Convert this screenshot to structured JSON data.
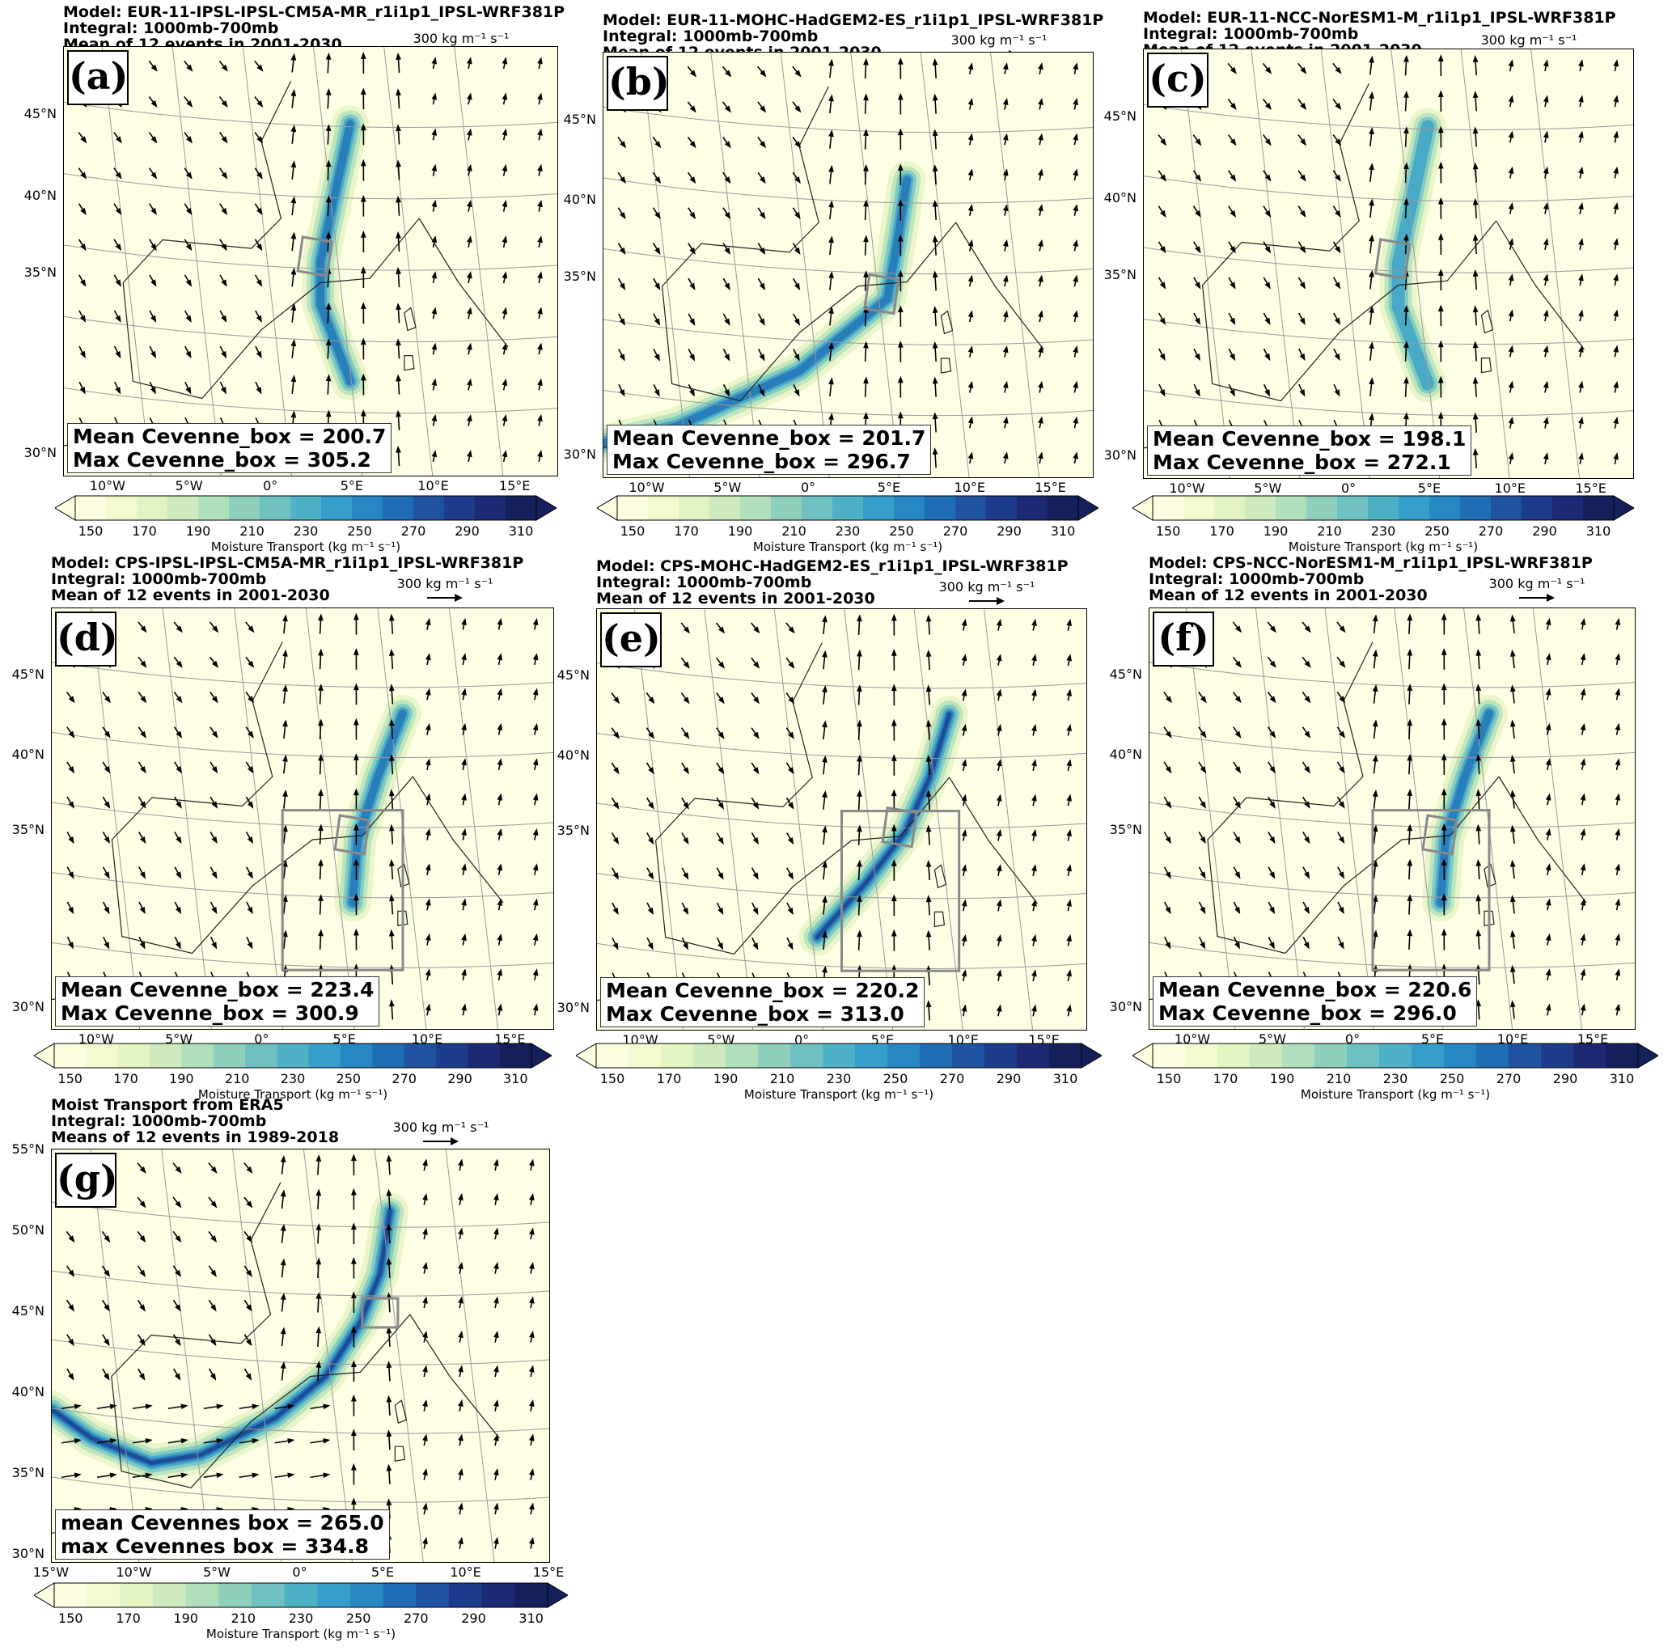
{
  "colors": {
    "scale": [
      "#fdfee0",
      "#f3fad0",
      "#e3f3c2",
      "#cdebbd",
      "#b0dfbb",
      "#8fd0bc",
      "#6ec1c0",
      "#4eb1c6",
      "#359fca",
      "#2687c2",
      "#1f6db4",
      "#1f53a2",
      "#1e3c8c",
      "#1b2a73",
      "#15205a"
    ]
  },
  "colorbar": {
    "ticks": [
      "150",
      "170",
      "190",
      "210",
      "230",
      "250",
      "270",
      "290",
      "310"
    ],
    "label": "Moisture Transport (kg m⁻¹ s⁻¹)"
  },
  "scale_label": "300 kg m⁻¹ s⁻¹",
  "panels": [
    {
      "letter": "(a)",
      "model": "Model: EUR-11-IPSL-IPSL-CM5A-MR_r1i1p1_IPSL-WRF381P",
      "integral": "Integral: 1000mb-700mb",
      "period": "Mean of 12 events in 2001-2030",
      "mean_text": "Mean Cevenne_box = 200.7",
      "max_text": "Max Cevenne_box = 305.2",
      "lat_labels": [
        "45°N",
        "40°N",
        "35°N",
        "30°N"
      ],
      "lon_labels": [
        "10°W",
        "5°W",
        "0°",
        "5°E",
        "10°E",
        "15°E"
      ],
      "mean": 200.7,
      "max": 305.2
    },
    {
      "letter": "(b)",
      "model": "Model: EUR-11-MOHC-HadGEM2-ES_r1i1p1_IPSL-WRF381P",
      "integral": "Integral: 1000mb-700mb",
      "period": "Mean of 12 events in 2001-2030",
      "mean_text": "Mean Cevenne_box = 201.7",
      "max_text": "Max Cevenne_box = 296.7",
      "lat_labels": [
        "45°N",
        "40°N",
        "35°N",
        "30°N"
      ],
      "lon_labels": [
        "10°W",
        "5°W",
        "0°",
        "5°E",
        "10°E",
        "15°E"
      ],
      "mean": 201.7,
      "max": 296.7
    },
    {
      "letter": "(c)",
      "model": "Model: EUR-11-NCC-NorESM1-M_r1i1p1_IPSL-WRF381P",
      "integral": "Integral: 1000mb-700mb",
      "period": "Mean of 12 events in 2001-2030",
      "mean_text": "Mean Cevenne_box = 198.1",
      "max_text": "Max Cevenne_box = 272.1",
      "lat_labels": [
        "45°N",
        "40°N",
        "35°N",
        "30°N"
      ],
      "lon_labels": [
        "10°W",
        "5°W",
        "0°",
        "5°E",
        "10°E",
        "15°E"
      ],
      "mean": 198.1,
      "max": 272.1
    },
    {
      "letter": "(d)",
      "model": "Model: CPS-IPSL-IPSL-CM5A-MR_r1i1p1_IPSL-WRF381P",
      "integral": "Integral: 1000mb-700mb",
      "period": "Mean of 12 events in 2001-2030",
      "mean_text": "Mean Cevenne_box = 223.4",
      "max_text": "Max Cevenne_box = 300.9",
      "lat_labels": [
        "45°N",
        "40°N",
        "35°N",
        "30°N"
      ],
      "lon_labels": [
        "10°W",
        "5°W",
        "0°",
        "5°E",
        "10°E",
        "15°E"
      ],
      "mean": 223.4,
      "max": 300.9
    },
    {
      "letter": "(e)",
      "model": "Model: CPS-MOHC-HadGEM2-ES_r1i1p1_IPSL-WRF381P",
      "integral": "Integral: 1000mb-700mb",
      "period": "Mean of 12 events in 2001-2030",
      "mean_text": "Mean Cevenne_box = 220.2",
      "max_text": "Max Cevenne_box = 313.0",
      "lat_labels": [
        "45°N",
        "40°N",
        "35°N",
        "30°N"
      ],
      "lon_labels": [
        "10°W",
        "5°W",
        "0°",
        "5°E",
        "10°E",
        "15°E"
      ],
      "mean": 220.2,
      "max": 313.0
    },
    {
      "letter": "(f)",
      "model": "Model: CPS-NCC-NorESM1-M_r1i1p1_IPSL-WRF381P",
      "integral": "Integral: 1000mb-700mb",
      "period": "Mean of 12 events in 2001-2030",
      "mean_text": "Mean Cevenne_box = 220.6",
      "max_text": "Max Cevenne_box = 296.0",
      "lat_labels": [
        "45°N",
        "40°N",
        "35°N",
        "30°N"
      ],
      "lon_labels": [
        "10°W",
        "5°W",
        "0°",
        "5°E",
        "10°E",
        "15°E"
      ],
      "mean": 220.6,
      "max": 296.0
    },
    {
      "letter": "(g)",
      "model": "Moist Transport from ERA5",
      "integral": "Integral: 1000mb-700mb",
      "period": "Means of 12 events in 1989-2018",
      "mean_text": "mean Cevennes box = 265.0",
      "max_text": "max Cevennes box = 334.8",
      "lat_labels": [
        "55°N",
        "50°N",
        "45°N",
        "40°N",
        "35°N",
        "30°N"
      ],
      "lon_labels": [
        "15°W",
        "10°W",
        "5°W",
        "0°",
        "5°E",
        "10°E",
        "15°E"
      ],
      "mean": 265.0,
      "max": 334.8
    }
  ]
}
